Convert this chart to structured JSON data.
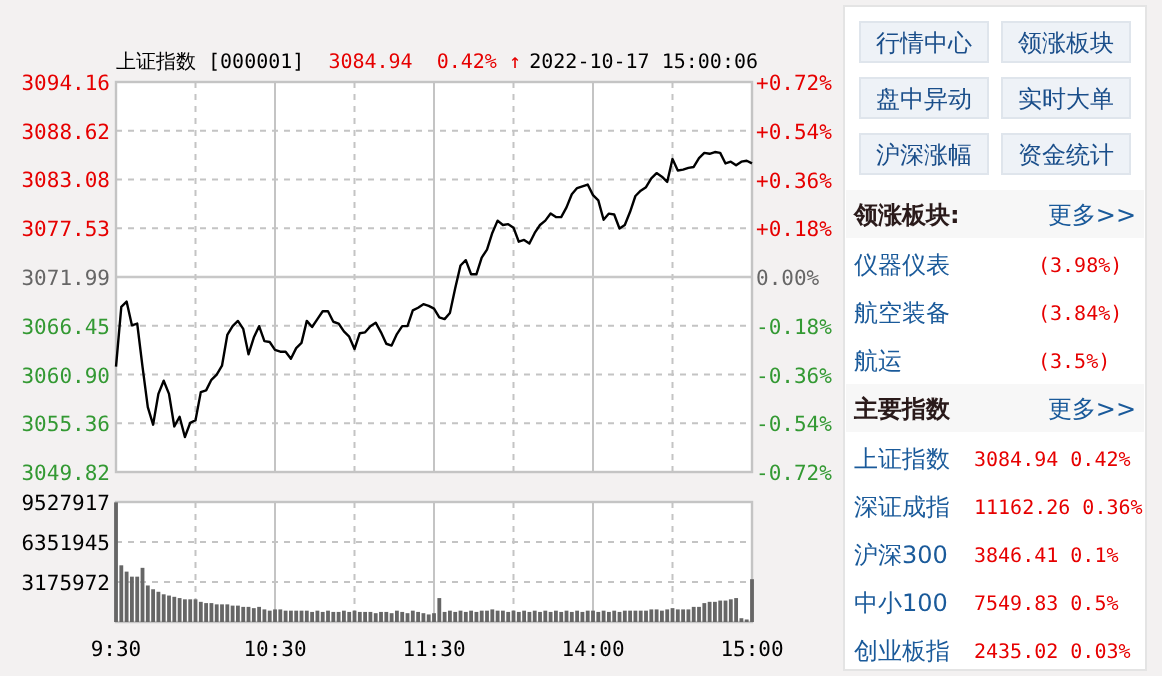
{
  "chart_data": [
    {
      "type": "line",
      "title": "上证指数 [000001]",
      "annotations": [
        "3084.94",
        "0.42% ↑",
        "2022-10-17 15:00:06"
      ],
      "categories": [
        null,
        null,
        null,
        null,
        null,
        null,
        null,
        null,
        null,
        null,
        null,
        null,
        null,
        null,
        null,
        null,
        null,
        null,
        null,
        null,
        null,
        null,
        null,
        null,
        null,
        null,
        null,
        null,
        null,
        null,
        null,
        null,
        null,
        null,
        null,
        null,
        null,
        null,
        null,
        null,
        null,
        null,
        null,
        null,
        null,
        null,
        null,
        null,
        null,
        null,
        null,
        null,
        null,
        null,
        null,
        null,
        null,
        null,
        null,
        null,
        null,
        null,
        null,
        null,
        null,
        null,
        null,
        null,
        null,
        null,
        null,
        null,
        null,
        null,
        null,
        null,
        null,
        null,
        null,
        null,
        null,
        null,
        null,
        null,
        null,
        null,
        null,
        null,
        null,
        null,
        null,
        null,
        null,
        null,
        null,
        null,
        null,
        null,
        null,
        null,
        null,
        null,
        null,
        null,
        null,
        null,
        null,
        null,
        null,
        null,
        null,
        null,
        null,
        null,
        null,
        null,
        null,
        null,
        null,
        null,
        null
      ],
      "series": [
        {
          "color": "#000000",
          "values": [
            3061.8,
            3068.6,
            3069.2,
            3066.5,
            3066.7,
            3061.8,
            3057.2,
            3055.2,
            3058.7,
            3060.2,
            3058.7,
            3055.0,
            3056.1,
            3053.8,
            3055.4,
            3055.7,
            3058.9,
            3059.1,
            3060.3,
            3060.9,
            3061.9,
            3065.4,
            3066.4,
            3067.0,
            3066.1,
            3063.2,
            3065.1,
            3066.4,
            3064.7,
            3064.6,
            3063.7,
            3063.5,
            3063.5,
            3062.7,
            3063.9,
            3064.5,
            3067.0,
            3066.3,
            3067.2,
            3068.1,
            3068.1,
            3066.9,
            3066.7,
            3065.8,
            3065.2,
            3063.8,
            3065.6,
            3065.7,
            3066.4,
            3066.8,
            3065.7,
            3064.4,
            3064.2,
            3065.5,
            3066.4,
            3066.4,
            3068.2,
            3068.5,
            3068.9,
            3068.7,
            3068.4,
            3067.4,
            3067.2,
            3067.9,
            3070.7,
            3073.3,
            3073.9,
            3072.3,
            3072.3,
            3074.2,
            3075.1,
            3077.0,
            3078.4,
            3077.9,
            3078.0,
            3077.6,
            3076.0,
            3076.2,
            3075.8,
            3077.0,
            3077.9,
            3078.4,
            3079.2,
            3078.8,
            3078.8,
            3079.9,
            3081.4,
            3082.1,
            3082.3,
            3082.5,
            3081.3,
            3080.7,
            3078.5,
            3079.2,
            3079.1,
            3077.5,
            3077.9,
            3079.4,
            3081.2,
            3081.8,
            3082.2,
            3083.2,
            3083.8,
            3083.4,
            3082.8,
            3085.4,
            3084.1,
            3084.2,
            3084.4,
            3084.5,
            3085.5,
            3086.1,
            3086.0,
            3086.2,
            3086.1,
            3084.9,
            3085.1,
            3084.7,
            3085.1,
            3085.2,
            3084.9
          ]
        }
      ],
      "ylim": [
        3049.82,
        3094.16
      ],
      "yticks": [
        3094.16,
        3088.62,
        3083.08,
        3077.53,
        3071.99,
        3066.45,
        {
          "value": 3060.9,
          "label": "3060.90"
        },
        3055.36,
        3049.82
      ],
      "y2lim": [
        -0.72,
        0.72
      ],
      "y2ticks": [
        {
          "value": 0.72,
          "label": "+0.72%"
        },
        {
          "value": 0.54,
          "label": "+0.54%"
        },
        {
          "value": 0.36,
          "label": "+0.36%"
        },
        {
          "value": 0.18,
          "label": "+0.18%"
        },
        {
          "value": 0,
          "label": "0.00%"
        },
        {
          "value": -0.18,
          "label": "-0.18%"
        },
        {
          "value": -0.36,
          "label": "-0.36%"
        },
        {
          "value": -0.54,
          "label": "-0.54%"
        },
        {
          "value": -0.72,
          "label": "-0.72%"
        }
      ],
      "ref_lines": [
        {
          "axis": "y",
          "value": 3071.99,
          "color": "#c8c8c8",
          "line_style": "solid"
        }
      ],
      "grid": true,
      "tick_labels": "y"
    },
    {
      "type": "bar",
      "categories": [
        "9:30",
        null,
        null,
        null,
        null,
        null,
        null,
        null,
        null,
        null,
        null,
        null,
        null,
        null,
        null,
        null,
        null,
        null,
        null,
        null,
        null,
        null,
        null,
        null,
        null,
        null,
        null,
        null,
        null,
        null,
        "10:30",
        null,
        null,
        null,
        null,
        null,
        null,
        null,
        null,
        null,
        null,
        null,
        null,
        null,
        null,
        null,
        null,
        null,
        null,
        null,
        null,
        null,
        null,
        null,
        null,
        null,
        null,
        null,
        null,
        null,
        "11:30",
        null,
        null,
        null,
        null,
        null,
        null,
        null,
        null,
        null,
        null,
        null,
        null,
        null,
        null,
        null,
        null,
        null,
        null,
        null,
        null,
        null,
        null,
        null,
        null,
        null,
        null,
        null,
        null,
        null,
        "14:00",
        null,
        null,
        null,
        null,
        null,
        null,
        null,
        null,
        null,
        null,
        null,
        null,
        null,
        null,
        null,
        null,
        null,
        null,
        null,
        null,
        null,
        null,
        null,
        null,
        null,
        null,
        null,
        null,
        null,
        "15:00"
      ],
      "series": [
        {
          "color": "#666666",
          "values": [
            9500000,
            4500000,
            4000000,
            3600000,
            3600000,
            4300000,
            2900000,
            2600000,
            2400000,
            2200000,
            2100000,
            2000000,
            1900000,
            1800000,
            1800000,
            1800000,
            1600000,
            1500000,
            1500000,
            1400000,
            1400000,
            1400000,
            1300000,
            1300000,
            1200000,
            1200000,
            1100000,
            1200000,
            1000000,
            900000,
            1000000,
            1000000,
            900000,
            900000,
            900000,
            900000,
            900000,
            800000,
            900000,
            800000,
            900000,
            800000,
            800000,
            900000,
            800000,
            900000,
            800000,
            800000,
            800000,
            700000,
            800000,
            800000,
            700000,
            900000,
            800000,
            700000,
            900000,
            800000,
            700000,
            600000,
            700000,
            1900000,
            800000,
            900000,
            800000,
            900000,
            800000,
            900000,
            800000,
            900000,
            900000,
            1000000,
            900000,
            900000,
            800000,
            900000,
            800000,
            900000,
            800000,
            900000,
            800000,
            900000,
            800000,
            900000,
            800000,
            900000,
            800000,
            900000,
            800000,
            900000,
            900000,
            800000,
            900000,
            800000,
            900000,
            800000,
            900000,
            900000,
            900000,
            900000,
            900000,
            1000000,
            1000000,
            900000,
            1000000,
            1100000,
            1000000,
            1000000,
            1000000,
            1200000,
            1200000,
            1500000,
            1600000,
            1600000,
            1700000,
            1700000,
            1800000,
            1900000,
            300000,
            200000,
            3400000
          ]
        }
      ],
      "ylim": [
        0,
        9527917
      ],
      "yticks": [
        {
          "value": 0,
          "label": null
        },
        3175972,
        6351945,
        9527917
      ],
      "grid": true
    },
    {
      "type": "other",
      "annotations": [
        "行情中心",
        "领涨板块",
        "盘中异动",
        "实时大单",
        "沪深涨幅",
        "资金统计",
        "领涨板块:",
        "更多>>",
        "仪器仪表",
        "(3.98%)",
        "航空装备",
        "(3.84%)",
        "航运",
        "(3.5%)",
        "主要指数",
        "更多>>",
        "上证指数",
        "3084.94 0.42%",
        "深证成指",
        "11162.26 0.36%",
        "沪深300",
        "3846.41 0.1%",
        "中小100",
        "7549.83 0.5%",
        "创业板指",
        "2435.02 0.03%"
      ]
    }
  ]
}
